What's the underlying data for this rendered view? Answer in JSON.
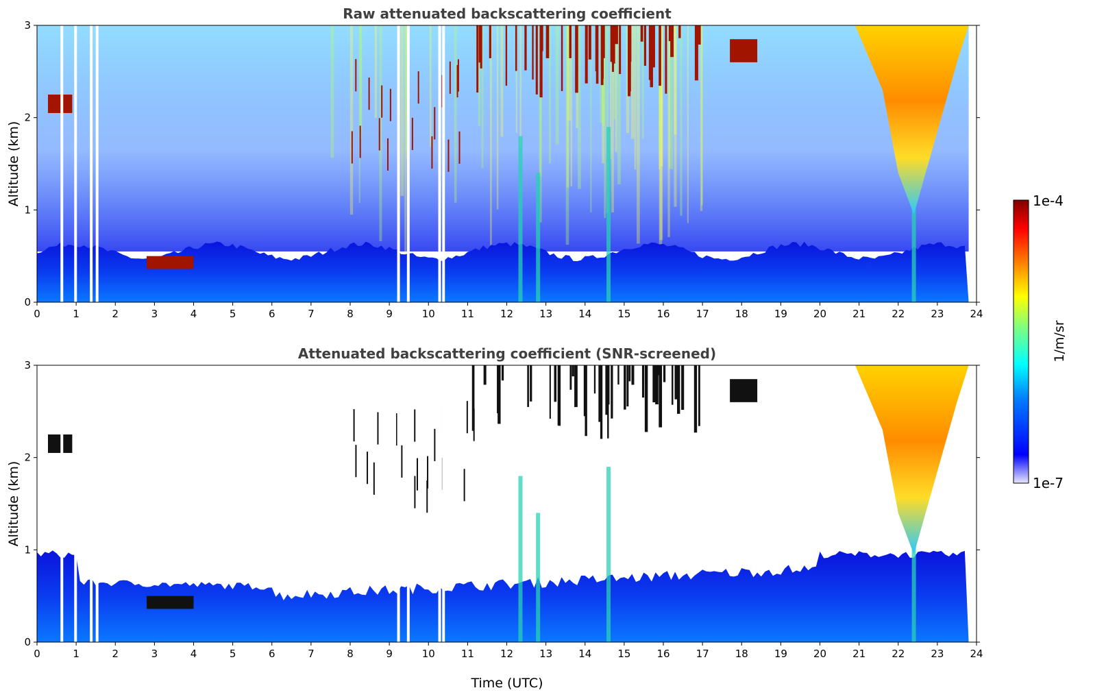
{
  "chart_data": [
    {
      "type": "heatmap",
      "title": "Raw attenuated backscattering coefficient",
      "xlabel": "",
      "ylabel": "Altitude (km)",
      "xlim": [
        0,
        24
      ],
      "ylim": [
        0,
        3
      ],
      "x_ticks": [
        "0",
        "1",
        "2",
        "3",
        "4",
        "5",
        "6",
        "7",
        "8",
        "9",
        "10",
        "11",
        "12",
        "13",
        "14",
        "15",
        "16",
        "17",
        "18",
        "19",
        "20",
        "21",
        "22",
        "23",
        "24"
      ],
      "y_ticks": [
        "0",
        "1",
        "2",
        "3"
      ],
      "colorscale": "jet",
      "features": [
        {
          "kind": "boundary-layer",
          "t_start": 0,
          "t_end": 24,
          "top_km": 0.5
        },
        {
          "kind": "cloud",
          "t_start": 0.25,
          "t_end": 0.9,
          "alt_km": 2.15
        },
        {
          "kind": "cloud",
          "t_start": 2.8,
          "t_end": 4.0,
          "alt_km": 0.43
        },
        {
          "kind": "cloud",
          "t_start": 11.0,
          "t_end": 17.0,
          "alt_km": 2.6
        },
        {
          "kind": "cloud",
          "t_start": 17.6,
          "t_end": 18.4,
          "alt_km": 2.75
        },
        {
          "kind": "plume",
          "t_start": 21.0,
          "t_end": 23.8,
          "alt_km": 2.0
        }
      ]
    },
    {
      "type": "heatmap",
      "title": "Attenuated backscattering coefficient (SNR-screened)",
      "xlabel": "Time (UTC)",
      "ylabel": "Altitude (km)",
      "xlim": [
        0,
        24
      ],
      "ylim": [
        0,
        3
      ],
      "x_ticks": [
        "0",
        "1",
        "2",
        "3",
        "4",
        "5",
        "6",
        "7",
        "8",
        "9",
        "10",
        "11",
        "12",
        "13",
        "14",
        "15",
        "16",
        "17",
        "18",
        "19",
        "20",
        "21",
        "22",
        "23",
        "24"
      ],
      "y_ticks": [
        "0",
        "1",
        "2",
        "3"
      ],
      "colorscale": "jet",
      "features": [
        {
          "kind": "boundary-layer",
          "t_start": 0,
          "t_end": 24,
          "top_km": 0.6
        },
        {
          "kind": "cloud",
          "t_start": 0.25,
          "t_end": 0.9,
          "alt_km": 2.15
        },
        {
          "kind": "cloud",
          "t_start": 2.8,
          "t_end": 4.0,
          "alt_km": 0.43
        },
        {
          "kind": "cloud",
          "t_start": 11.0,
          "t_end": 17.0,
          "alt_km": 2.6
        },
        {
          "kind": "plume",
          "t_start": 21.0,
          "t_end": 23.8,
          "alt_km": 2.0
        }
      ]
    }
  ],
  "colorbar": {
    "max_label": "1e-4",
    "min_label": "1e-7",
    "unit_label": "1/m/sr",
    "colors": [
      "#00007f",
      "#0000ff",
      "#007fff",
      "#00ffff",
      "#7fff7f",
      "#ffff00",
      "#ff7f00",
      "#ff0000",
      "#7f0000"
    ]
  }
}
